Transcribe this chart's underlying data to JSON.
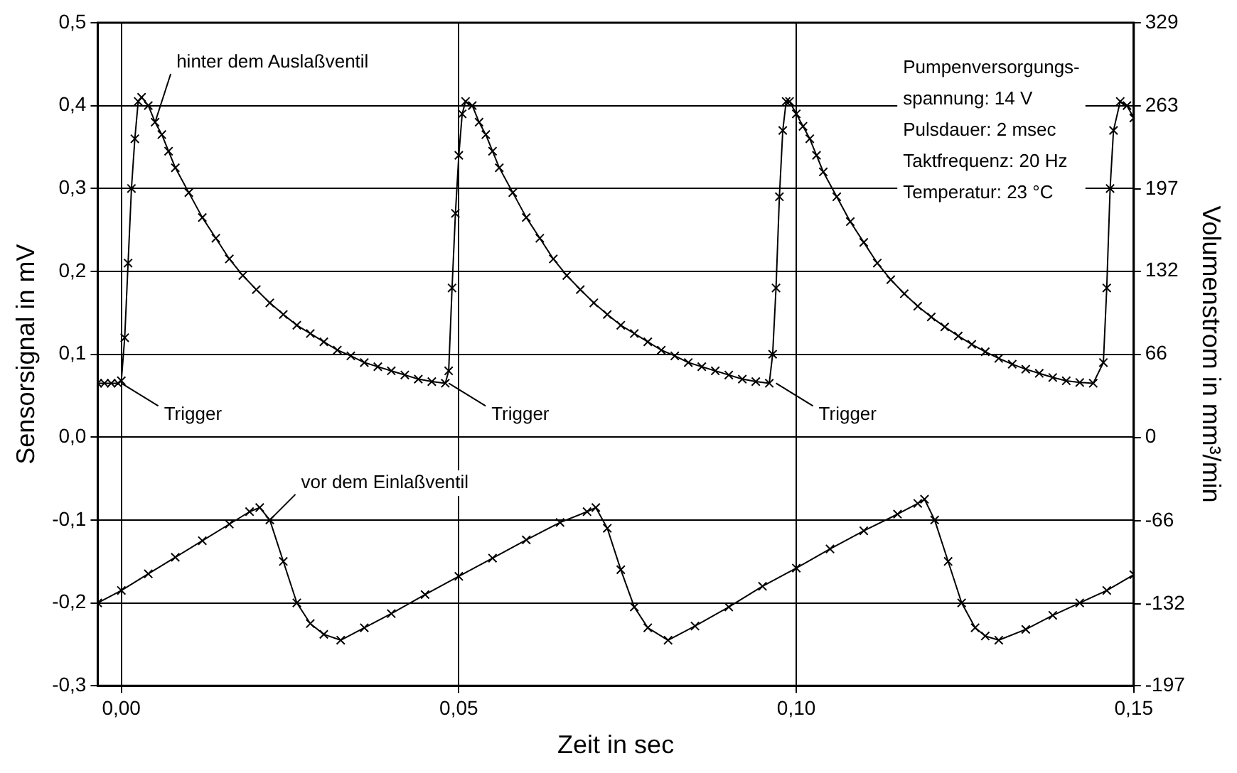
{
  "chart_data": {
    "type": "line",
    "xlabel": "Zeit in sec",
    "ylabel": "Sensorsignal in mV",
    "y2label": "Volumenstrom in mm³/min",
    "xlim": [
      -0.0035,
      0.15
    ],
    "xticks": [
      {
        "value": 0,
        "label": "0,00"
      },
      {
        "value": 0.05,
        "label": "0,05"
      },
      {
        "value": 0.1,
        "label": "0,10"
      },
      {
        "value": 0.15,
        "label": "0,15"
      }
    ],
    "ylim": [
      -0.3,
      0.5
    ],
    "yticks": [
      {
        "value": -0.3,
        "label": "-0,3"
      },
      {
        "value": -0.2,
        "label": "-0,2"
      },
      {
        "value": -0.1,
        "label": "-0,1"
      },
      {
        "value": 0,
        "label": "0,0"
      },
      {
        "value": 0.1,
        "label": "0,1"
      },
      {
        "value": 0.2,
        "label": "0,2"
      },
      {
        "value": 0.3,
        "label": "0,3"
      },
      {
        "value": 0.4,
        "label": "0,4"
      },
      {
        "value": 0.5,
        "label": "0,5"
      }
    ],
    "y2lim": [
      -197,
      329
    ],
    "y2ticks": [
      -197,
      -132,
      -66,
      0,
      66,
      132,
      197,
      263,
      329
    ],
    "grid": true,
    "legend": false,
    "marker": "cross",
    "line_style": "solid",
    "series": [
      {
        "color": "#000000",
        "x": [
          -0.0035,
          -0.0025,
          -0.0015,
          -0.0005,
          0,
          0.0005,
          0.001,
          0.0015,
          0.002,
          0.0025,
          0.003,
          0.004,
          0.005,
          0.006,
          0.007,
          0.008,
          0.01,
          0.012,
          0.014,
          0.016,
          0.018,
          0.02,
          0.022,
          0.024,
          0.026,
          0.028,
          0.03,
          0.032,
          0.034,
          0.036,
          0.038,
          0.04,
          0.042,
          0.044,
          0.046,
          0.048,
          0.0485,
          0.049,
          0.0495,
          0.05,
          0.0505,
          0.051,
          0.052,
          0.053,
          0.054,
          0.055,
          0.056,
          0.058,
          0.06,
          0.062,
          0.064,
          0.066,
          0.068,
          0.07,
          0.072,
          0.074,
          0.076,
          0.078,
          0.08,
          0.082,
          0.084,
          0.086,
          0.088,
          0.09,
          0.092,
          0.094,
          0.096,
          0.0965,
          0.097,
          0.0975,
          0.098,
          0.0985,
          0.099,
          0.1,
          0.101,
          0.102,
          0.103,
          0.104,
          0.106,
          0.108,
          0.11,
          0.112,
          0.114,
          0.116,
          0.118,
          0.12,
          0.122,
          0.124,
          0.126,
          0.128,
          0.13,
          0.132,
          0.134,
          0.136,
          0.138,
          0.14,
          0.142,
          0.144,
          0.1455,
          0.146,
          0.1465,
          0.147,
          0.148,
          0.149,
          0.15
        ],
        "values": [
          0.065,
          0.065,
          0.065,
          0.065,
          0.068,
          0.12,
          0.21,
          0.3,
          0.36,
          0.405,
          0.41,
          0.4,
          0.38,
          0.365,
          0.345,
          0.325,
          0.295,
          0.265,
          0.24,
          0.215,
          0.195,
          0.178,
          0.162,
          0.148,
          0.135,
          0.125,
          0.115,
          0.105,
          0.098,
          0.09,
          0.085,
          0.08,
          0.075,
          0.07,
          0.067,
          0.065,
          0.08,
          0.18,
          0.27,
          0.34,
          0.39,
          0.405,
          0.4,
          0.38,
          0.365,
          0.345,
          0.325,
          0.295,
          0.265,
          0.24,
          0.215,
          0.195,
          0.178,
          0.162,
          0.148,
          0.135,
          0.125,
          0.115,
          0.105,
          0.098,
          0.09,
          0.085,
          0.08,
          0.075,
          0.07,
          0.067,
          0.065,
          0.1,
          0.18,
          0.29,
          0.37,
          0.405,
          0.405,
          0.39,
          0.375,
          0.36,
          0.34,
          0.32,
          0.29,
          0.26,
          0.235,
          0.21,
          0.19,
          0.173,
          0.158,
          0.145,
          0.133,
          0.122,
          0.112,
          0.103,
          0.095,
          0.088,
          0.082,
          0.077,
          0.072,
          0.068,
          0.066,
          0.065,
          0.09,
          0.18,
          0.3,
          0.37,
          0.405,
          0.4,
          0.385
        ]
      },
      {
        "color": "#000000",
        "x": [
          -0.0035,
          0,
          0.004,
          0.008,
          0.012,
          0.016,
          0.019,
          0.0205,
          0.022,
          0.024,
          0.026,
          0.028,
          0.03,
          0.0325,
          0.036,
          0.04,
          0.045,
          0.05,
          0.055,
          0.06,
          0.065,
          0.069,
          0.0703,
          0.072,
          0.074,
          0.076,
          0.078,
          0.081,
          0.085,
          0.09,
          0.095,
          0.1,
          0.105,
          0.11,
          0.115,
          0.118,
          0.119,
          0.1205,
          0.1225,
          0.1245,
          0.1265,
          0.128,
          0.13,
          0.134,
          0.138,
          0.142,
          0.146,
          0.15
        ],
        "values": [
          -0.2,
          -0.185,
          -0.165,
          -0.145,
          -0.125,
          -0.105,
          -0.09,
          -0.085,
          -0.1,
          -0.15,
          -0.2,
          -0.225,
          -0.238,
          -0.245,
          -0.23,
          -0.213,
          -0.19,
          -0.168,
          -0.146,
          -0.124,
          -0.103,
          -0.09,
          -0.085,
          -0.11,
          -0.16,
          -0.205,
          -0.23,
          -0.245,
          -0.228,
          -0.205,
          -0.18,
          -0.158,
          -0.135,
          -0.113,
          -0.093,
          -0.08,
          -0.075,
          -0.1,
          -0.15,
          -0.2,
          -0.23,
          -0.24,
          -0.245,
          -0.232,
          -0.215,
          -0.2,
          -0.185,
          -0.166
        ]
      }
    ],
    "annotations": [
      {
        "text": "hinter dem Auslaßventil",
        "x": 0.005,
        "y": 0.38
      },
      {
        "text": "Trigger",
        "x": 0,
        "y": 0.065
      },
      {
        "text": "Trigger",
        "x": 0.0485,
        "y": 0.065
      },
      {
        "text": "Trigger",
        "x": 0.097,
        "y": 0.065
      },
      {
        "text": "vor dem Einlaßventil",
        "x": 0.022,
        "y": -0.1
      },
      "Pumpenversorgungs-\nspannung: 14 V\nPulsdauer: 2 msec\nTaktfrequenz: 20 Hz\nTemperatur: 23 °C"
    ]
  }
}
